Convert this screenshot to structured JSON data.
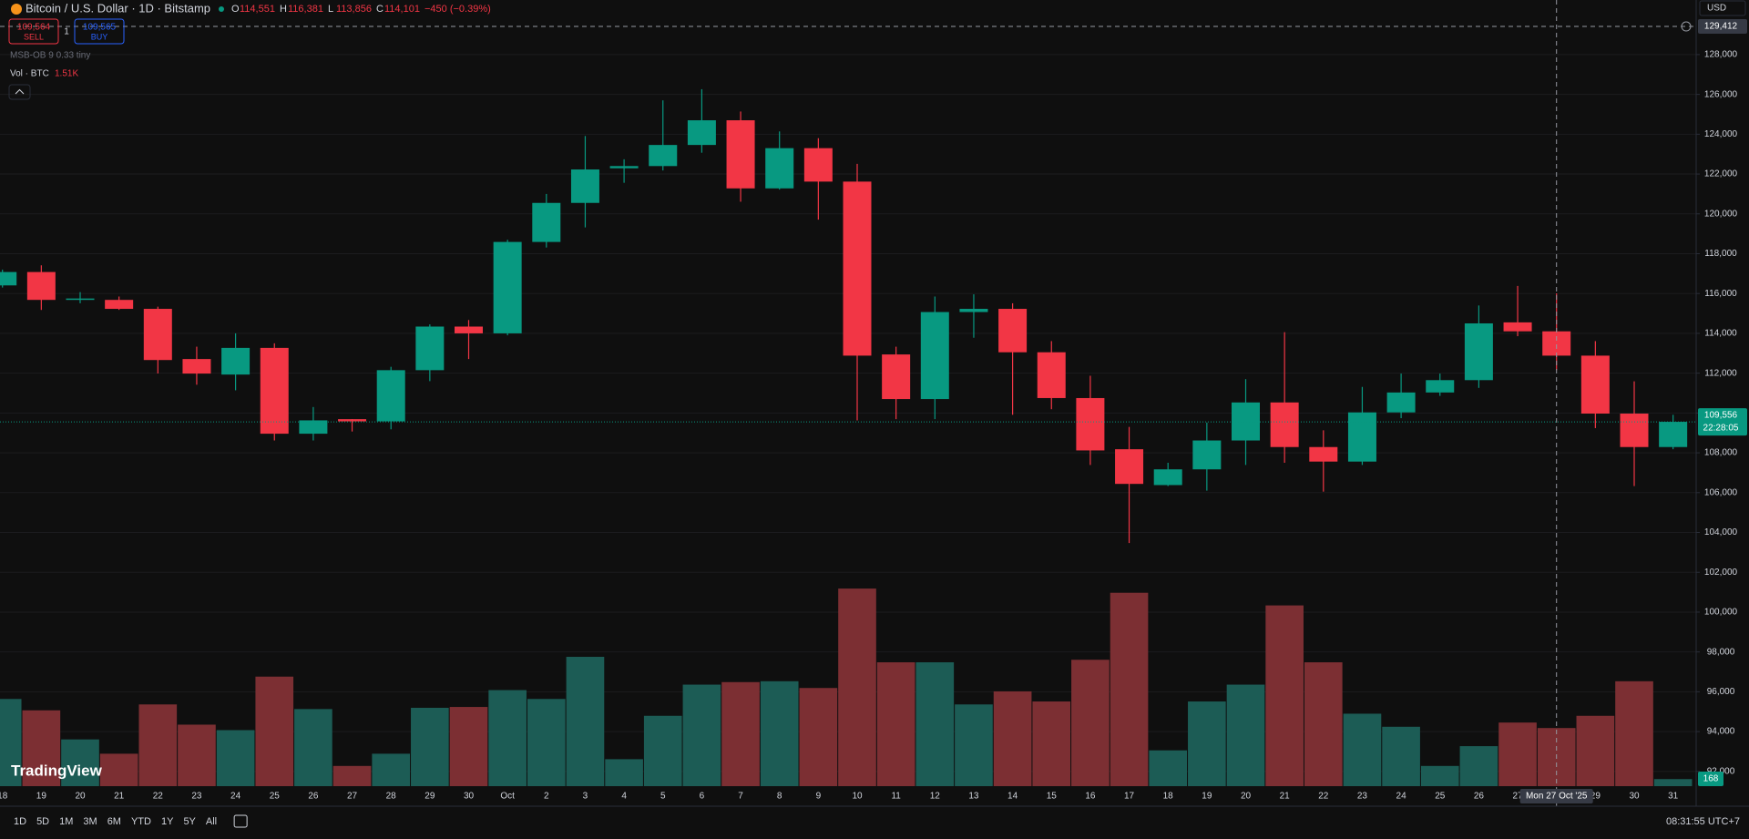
{
  "header": {
    "symbol": "Bitcoin / U.S. Dollar · 1D · Bitstamp",
    "ohlc": [
      {
        "key": "O",
        "value": "114,551"
      },
      {
        "key": "H",
        "value": "116,381"
      },
      {
        "key": "L",
        "value": "113,856"
      },
      {
        "key": "C",
        "value": "114,101"
      }
    ],
    "change": "−450 (−0.39%)"
  },
  "order": {
    "sell_price": "109,564",
    "sell": "SELL",
    "spread": "1",
    "buy_price": "109,565",
    "buy": "BUY"
  },
  "indicator": "MSB-OB 9 0.33 tiny",
  "currency": "USD",
  "logo": "TradingView",
  "toolbar": {
    "ranges": [
      "1D",
      "5D",
      "1M",
      "3M",
      "6M",
      "YTD",
      "1Y",
      "5Y",
      "All"
    ],
    "clock": "08:31:55 UTC+7"
  },
  "chart_data": {
    "type": "candlestick",
    "categories": [
      "18",
      "19",
      "20",
      "21",
      "22",
      "23",
      "24",
      "25",
      "26",
      "27",
      "28",
      "29",
      "30",
      "Oct",
      "2",
      "3",
      "4",
      "5",
      "6",
      "7",
      "8",
      "9",
      "10",
      "11",
      "12",
      "13",
      "14",
      "15",
      "16",
      "17",
      "18",
      "19",
      "20",
      "21",
      "22",
      "23",
      "24",
      "25",
      "26",
      "27",
      "28",
      "29",
      "30",
      "31"
    ],
    "open": [
      116408,
      117080,
      115680,
      115680,
      115230,
      112710,
      111930,
      113270,
      108960,
      109690,
      109580,
      112150,
      114340,
      114000,
      118590,
      120550,
      122290,
      122400,
      123460,
      124700,
      121280,
      123300,
      121620,
      112940,
      110700,
      115070,
      115230,
      113050,
      110750,
      108180,
      106380,
      107170,
      108620,
      110530,
      108290,
      107560,
      110030,
      111030,
      111650,
      114551,
      114101,
      112880,
      109970,
      108290
    ],
    "high": [
      117200,
      117416,
      116070,
      115850,
      115340,
      113330,
      114000,
      113500,
      110300,
      109690,
      112320,
      114450,
      114670,
      118700,
      121000,
      123910,
      122740,
      125700,
      126260,
      125140,
      124140,
      123800,
      122510,
      113330,
      115850,
      115960,
      115510,
      113610,
      111870,
      109300,
      107500,
      109520,
      111700,
      114060,
      109130,
      111310,
      111980,
      111980,
      115400,
      116381,
      116010,
      113610,
      111590,
      109910
    ],
    "low": [
      116300,
      115176,
      115510,
      115180,
      111984,
      111420,
      111140,
      108620,
      108620,
      109070,
      109180,
      111600,
      112710,
      113900,
      118310,
      119320,
      121560,
      122180,
      123070,
      120610,
      121220,
      119710,
      109630,
      109690,
      109690,
      113780,
      109910,
      110190,
      107390,
      103470,
      106330,
      106100,
      107390,
      107500,
      106050,
      107390,
      109740,
      110860,
      111260,
      113856,
      112150,
      109240,
      106330,
      108180
    ],
    "close": [
      117080,
      115680,
      115750,
      115230,
      112660,
      111980,
      113270,
      108960,
      109630,
      109580,
      112150,
      114340,
      114000,
      118590,
      120550,
      122230,
      122400,
      123460,
      124700,
      121280,
      123300,
      121620,
      112880,
      110700,
      115070,
      115230,
      113050,
      110750,
      108120,
      106440,
      107170,
      108620,
      110530,
      108290,
      107560,
      110030,
      111030,
      111650,
      114500,
      114101,
      112880,
      109970,
      108290,
      109556
    ],
    "up_color": "#089981",
    "down_color": "#f23645",
    "last_price_label": "109,556",
    "countdown": "22:28:05",
    "ylim": [
      91260,
      130740
    ],
    "yticks": [
      {
        "value": 92000,
        "label": "92,000"
      },
      {
        "value": 94000,
        "label": "94,000"
      },
      {
        "value": 96000,
        "label": "96,000"
      },
      {
        "value": 98000,
        "label": "98,000"
      },
      {
        "value": 100000,
        "label": "100,000"
      },
      {
        "value": 102000,
        "label": "102,000"
      },
      {
        "value": 104000,
        "label": "104,000"
      },
      {
        "value": 106000,
        "label": "106,000"
      },
      {
        "value": 108000,
        "label": "108,000"
      },
      {
        "value": 110000,
        "label": "110,000"
      },
      {
        "value": 112000,
        "label": "112,000"
      },
      {
        "value": 114000,
        "label": "114,000"
      },
      {
        "value": 116000,
        "label": "116,000"
      },
      {
        "value": 118000,
        "label": "118,000"
      },
      {
        "value": 120000,
        "label": "120,000"
      },
      {
        "value": 122000,
        "label": "122,000"
      },
      {
        "value": 124000,
        "label": "124,000"
      },
      {
        "value": 126000,
        "label": "126,000"
      },
      {
        "value": 128000,
        "label": "128,000"
      }
    ],
    "grid": true,
    "crosshair": {
      "price": {
        "value": 129412,
        "label": "129,412"
      },
      "date": "Mon 27 Oct '25"
    },
    "volume": {
      "name": "Vol · BTC",
      "crosshair_label": "1.51K",
      "values": [
        2070,
        1800,
        1110,
        770,
        1940,
        1460,
        1330,
        2600,
        1830,
        480,
        770,
        1860,
        1880,
        2280,
        2070,
        3070,
        640,
        1670,
        2410,
        2470,
        2490,
        2330,
        4690,
        2940,
        2940,
        1940,
        2250,
        2010,
        3000,
        4590,
        850,
        2010,
        2410,
        4290,
        2940,
        1720,
        1410,
        480,
        950,
        1510,
        1380,
        1670,
        2490,
        168
      ],
      "up_color": "#1c5c55",
      "down_color": "#7c2f33",
      "y2lim": [
        0,
        8000
      ]
    }
  }
}
